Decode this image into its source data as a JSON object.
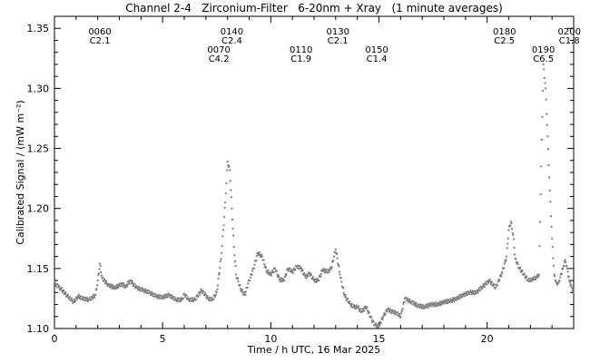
{
  "chart_data": {
    "type": "scatter",
    "title": "Channel 2-4   Zirconium-Filter   6-20nm + Xray   (1 minute averages)",
    "xlabel": "Time / h UTC, 16 Mar 2025",
    "ylabel": "Calibrated Signal / (mW m⁻²)",
    "xlim": [
      0,
      24
    ],
    "ylim": [
      1.1,
      1.36
    ],
    "xticks": [
      0,
      5,
      10,
      15,
      20
    ],
    "xtick_labels": [
      "0",
      "5",
      "10",
      "15",
      "20"
    ],
    "yticks": [
      1.1,
      1.15,
      1.2,
      1.25,
      1.3,
      1.35
    ],
    "ytick_labels": [
      "1.10",
      "1.15",
      "1.20",
      "1.25",
      "1.30",
      "1.35"
    ],
    "grid": false,
    "point_color": "#808080",
    "annotations": [
      {
        "x": 2.1,
        "row": "upper",
        "line1": "0060",
        "line2": "C2.1"
      },
      {
        "x": 8.2,
        "row": "upper",
        "line1": "0140",
        "line2": "C2.4"
      },
      {
        "x": 13.1,
        "row": "upper",
        "line1": "0130",
        "line2": "C2.1"
      },
      {
        "x": 20.8,
        "row": "upper",
        "line1": "0180",
        "line2": "C2.5"
      },
      {
        "x": 23.8,
        "row": "upper",
        "line1": "0200",
        "line2": "C1.8"
      },
      {
        "x": 7.6,
        "row": "lower",
        "line1": "0070",
        "line2": "C4.2"
      },
      {
        "x": 11.4,
        "row": "lower",
        "line1": "0110",
        "line2": "C1.9"
      },
      {
        "x": 14.9,
        "row": "lower",
        "line1": "0150",
        "line2": "C1.4"
      },
      {
        "x": 22.6,
        "row": "lower",
        "line1": "0190",
        "line2": "C6.5"
      }
    ],
    "series": [
      {
        "x": [
          0.0,
          0.3,
          0.6,
          0.9,
          1.1,
          1.3,
          1.6,
          1.9,
          2.0,
          2.1,
          2.2,
          2.5,
          2.8,
          3.1,
          3.3,
          3.5,
          3.8,
          4.1,
          4.4,
          4.7,
          5.0,
          5.3,
          5.6,
          5.9,
          6.0,
          6.2,
          6.5,
          6.8,
          7.1,
          7.3,
          7.5,
          7.7,
          7.9,
          8.0,
          8.1,
          8.2,
          8.3,
          8.4,
          8.6,
          8.8,
          9.0,
          9.2,
          9.4,
          9.6,
          9.8,
          10.0,
          10.2,
          10.4,
          10.6,
          10.8,
          11.0,
          11.2,
          11.4,
          11.6,
          11.8,
          12.0,
          12.2,
          12.4,
          12.6,
          12.8,
          13.0,
          13.2,
          13.4,
          13.6,
          13.8,
          14.0,
          14.2,
          14.4,
          14.6,
          14.8,
          15.0,
          15.2,
          15.4,
          15.6,
          15.8,
          16.0,
          16.2,
          16.5,
          16.8,
          17.1,
          17.4,
          17.7,
          18.0,
          18.3,
          18.6,
          18.9,
          19.2,
          19.5,
          19.8,
          20.1,
          20.4,
          20.7,
          20.9,
          21.0,
          21.1,
          21.2,
          21.3,
          21.5,
          21.7,
          21.9,
          22.1,
          22.3,
          22.4,
          22.5,
          22.6,
          22.7,
          22.8,
          22.9,
          23.0,
          23.1,
          23.2,
          23.3,
          23.5,
          23.6,
          23.7,
          23.8,
          23.9,
          24.0
        ],
        "y": [
          1.138,
          1.133,
          1.127,
          1.122,
          1.127,
          1.125,
          1.124,
          1.128,
          1.14,
          1.154,
          1.142,
          1.136,
          1.134,
          1.137,
          1.135,
          1.14,
          1.134,
          1.132,
          1.13,
          1.127,
          1.126,
          1.128,
          1.124,
          1.124,
          1.129,
          1.124,
          1.124,
          1.132,
          1.125,
          1.124,
          1.13,
          1.158,
          1.205,
          1.239,
          1.232,
          1.2,
          1.168,
          1.145,
          1.133,
          1.128,
          1.14,
          1.15,
          1.163,
          1.16,
          1.148,
          1.145,
          1.15,
          1.141,
          1.14,
          1.15,
          1.147,
          1.152,
          1.15,
          1.143,
          1.146,
          1.14,
          1.14,
          1.149,
          1.147,
          1.15,
          1.166,
          1.145,
          1.128,
          1.122,
          1.118,
          1.118,
          1.114,
          1.118,
          1.11,
          1.103,
          1.102,
          1.11,
          1.116,
          1.114,
          1.113,
          1.11,
          1.125,
          1.122,
          1.119,
          1.118,
          1.12,
          1.12,
          1.122,
          1.123,
          1.125,
          1.128,
          1.13,
          1.13,
          1.135,
          1.14,
          1.134,
          1.147,
          1.16,
          1.182,
          1.189,
          1.178,
          1.158,
          1.15,
          1.145,
          1.14,
          1.141,
          1.143,
          1.145,
          1.235,
          1.32,
          1.3,
          1.26,
          1.215,
          1.175,
          1.145,
          1.138,
          1.138,
          1.15,
          1.157,
          1.15,
          1.14,
          1.135,
          1.13
        ]
      }
    ]
  }
}
